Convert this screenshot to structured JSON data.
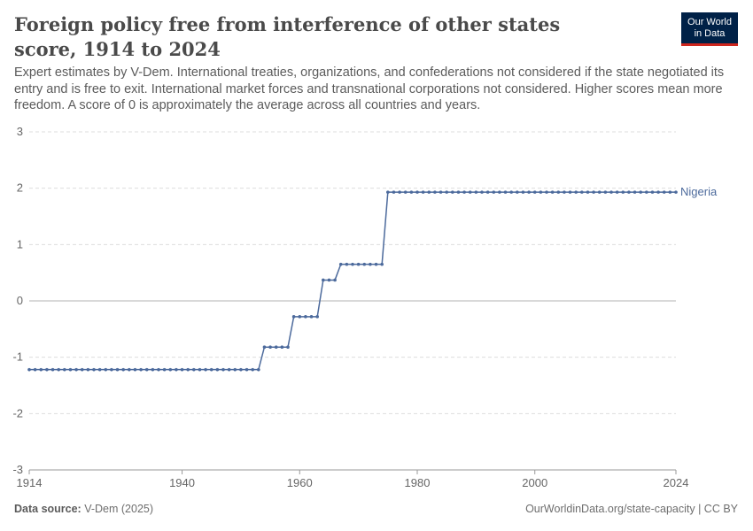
{
  "header": {
    "title": "Foreign policy free from interference of other states score, 1914 to 2024",
    "subtitle": "Expert estimates by V-Dem. International treaties, organizations, and confederations not considered if the state negotiated its entry and is free to exit. International market forces and transnational corporations not considered. Higher scores mean more freedom. A score of 0 is approximately the average across all countries and years.",
    "logo_line1": "Our World",
    "logo_line2": "in Data"
  },
  "footer": {
    "source_label": "Data source:",
    "source_value": "V-Dem (2025)",
    "url": "OurWorldinData.org/state-capacity | CC BY"
  },
  "colors": {
    "series": "#4c6a9c",
    "grid": "#dddddd",
    "zero": "#b3b3b3"
  },
  "chart_data": {
    "type": "line",
    "title": "Foreign policy free from interference of other states score, 1914 to 2024",
    "xlabel": "",
    "ylabel": "",
    "xlim": [
      1914,
      2024
    ],
    "ylim": [
      -3,
      3
    ],
    "x_ticks": [
      1914,
      1940,
      1960,
      1980,
      2000,
      2024
    ],
    "y_ticks": [
      -3,
      -2,
      -1,
      0,
      1,
      2,
      3
    ],
    "grid": true,
    "legend": "end-of-line label",
    "series": [
      {
        "name": "Nigeria",
        "segments": [
          {
            "from": 1914,
            "to": 1953,
            "value": -1.22
          },
          {
            "from": 1954,
            "to": 1958,
            "value": -0.82
          },
          {
            "from": 1959,
            "to": 1963,
            "value": -0.28
          },
          {
            "from": 1964,
            "to": 1966,
            "value": 0.37
          },
          {
            "from": 1967,
            "to": 1974,
            "value": 0.65
          },
          {
            "from": 1975,
            "to": 2024,
            "value": 1.93
          }
        ]
      }
    ]
  }
}
